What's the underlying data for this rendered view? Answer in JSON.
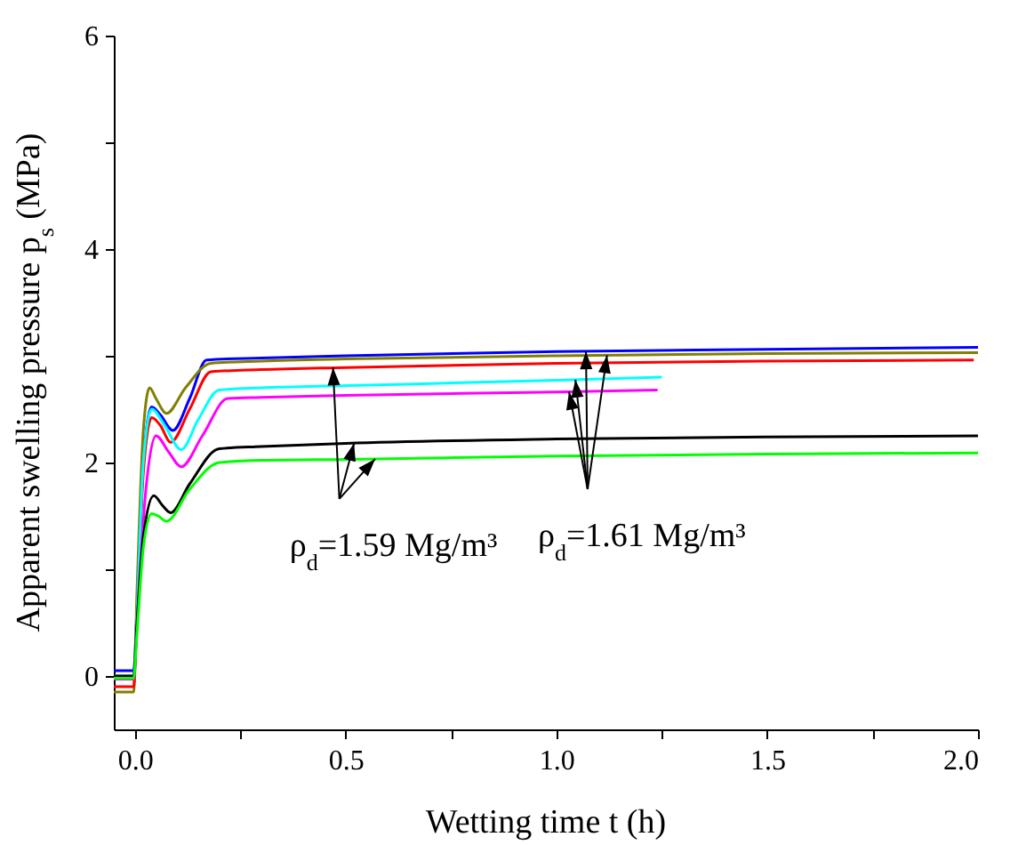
{
  "chart_data": {
    "type": "line",
    "xlabel": "Wetting time t (h)",
    "ylabel": "Apparent swelling pressure p$_{s}$ (MPa)",
    "xlim": [
      -0.05,
      2.0
    ],
    "ylim": [
      -0.5,
      6
    ],
    "xticks": [
      {
        "value": 0,
        "label": "0.0"
      },
      {
        "value": 0.25,
        "label": null
      },
      {
        "value": 0.5,
        "label": "0.5"
      },
      {
        "value": 0.75,
        "label": null
      },
      {
        "value": 1,
        "label": "1.0"
      },
      {
        "value": 1.25,
        "label": null
      },
      {
        "value": 1.5,
        "label": "1.5"
      },
      {
        "value": 1.75,
        "label": null
      },
      {
        "value": 2,
        "label": "2.0"
      }
    ],
    "yticks": [
      0,
      {
        "value": 1,
        "label": null
      },
      2,
      {
        "value": 3,
        "label": null
      },
      4,
      {
        "value": 5,
        "label": null
      },
      6
    ],
    "grid": false,
    "series": [
      {
        "color": "#0000ff",
        "x": [
          -0.05,
          -0.003,
          0.005,
          0.02,
          0.04,
          0.06,
          0.09,
          0.13,
          0.17,
          0.3,
          0.5,
          1.0,
          1.5,
          2.0
        ],
        "values": [
          0.05,
          0.05,
          0.6,
          2.0,
          2.52,
          2.45,
          2.3,
          2.6,
          2.96,
          2.98,
          3.0,
          3.04,
          3.06,
          3.08
        ]
      },
      {
        "color": "#808000",
        "x": [
          -0.05,
          -0.003,
          0.005,
          0.02,
          0.035,
          0.05,
          0.075,
          0.12,
          0.18,
          0.3,
          0.5,
          1.0,
          1.5,
          2.0
        ],
        "values": [
          -0.15,
          -0.15,
          0.8,
          2.3,
          2.7,
          2.6,
          2.46,
          2.7,
          2.93,
          2.95,
          2.97,
          3.0,
          3.02,
          3.03
        ]
      },
      {
        "color": "#ff0000",
        "x": [
          -0.05,
          -0.003,
          0.005,
          0.02,
          0.04,
          0.06,
          0.085,
          0.13,
          0.18,
          0.3,
          0.5,
          1.0,
          1.5,
          1.99
        ],
        "values": [
          -0.1,
          -0.1,
          0.6,
          1.9,
          2.42,
          2.35,
          2.19,
          2.5,
          2.85,
          2.87,
          2.89,
          2.93,
          2.95,
          2.96
        ]
      },
      {
        "color": "#00ffff",
        "x": [
          -0.05,
          -0.003,
          0.005,
          0.02,
          0.04,
          0.07,
          0.11,
          0.15,
          0.2,
          0.3,
          0.5,
          1.0,
          1.25
        ],
        "values": [
          0,
          0,
          0.6,
          2.0,
          2.5,
          2.35,
          2.12,
          2.4,
          2.68,
          2.7,
          2.72,
          2.77,
          2.8
        ]
      },
      {
        "color": "#ff00ff",
        "x": [
          -0.05,
          -0.003,
          0.005,
          0.025,
          0.05,
          0.08,
          0.11,
          0.16,
          0.22,
          0.3,
          0.5,
          1.0,
          1.24
        ],
        "values": [
          -0.03,
          -0.03,
          0.5,
          1.7,
          2.25,
          2.1,
          1.96,
          2.25,
          2.6,
          2.61,
          2.63,
          2.66,
          2.68
        ]
      },
      {
        "color": "#000000",
        "x": [
          -0.05,
          -0.003,
          0.005,
          0.02,
          0.045,
          0.065,
          0.085,
          0.13,
          0.2,
          0.3,
          0.5,
          1.0,
          1.5,
          2.0
        ],
        "values": [
          0,
          0,
          0.5,
          1.3,
          1.69,
          1.6,
          1.53,
          1.8,
          2.13,
          2.15,
          2.18,
          2.22,
          2.24,
          2.25
        ]
      },
      {
        "color": "#00ff00",
        "x": [
          -0.05,
          -0.003,
          0.005,
          0.02,
          0.04,
          0.055,
          0.075,
          0.13,
          0.2,
          0.3,
          0.5,
          1.0,
          1.5,
          2.0
        ],
        "values": [
          -0.02,
          -0.02,
          0.4,
          1.2,
          1.52,
          1.5,
          1.45,
          1.75,
          2.0,
          2.02,
          2.03,
          2.06,
          2.08,
          2.09
        ]
      }
    ],
    "annotations": [
      {
        "text": "ρ$_{d}$=1.59 Mg/m³",
        "x": 0.47,
        "y": 2.89
      },
      {
        "text": "ρ$_{d}$=1.61 Mg/m³",
        "x": 1.07,
        "y": 3.04
      }
    ]
  }
}
